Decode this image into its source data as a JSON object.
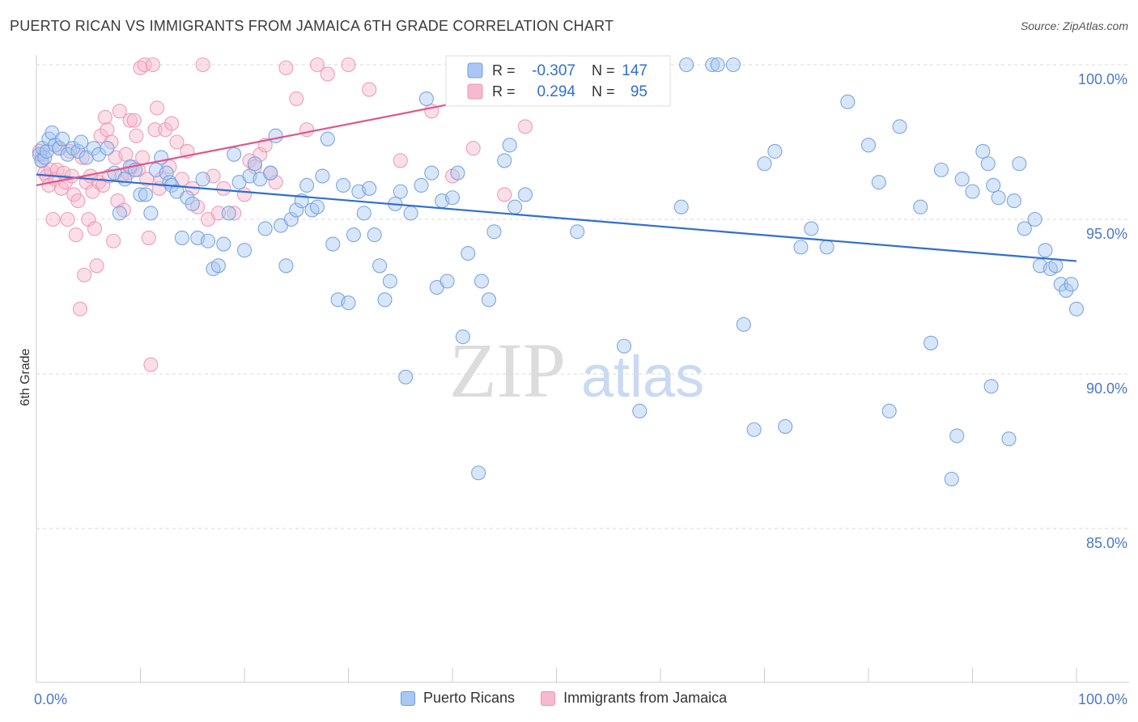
{
  "title": "PUERTO RICAN VS IMMIGRANTS FROM JAMAICA 6TH GRADE CORRELATION CHART",
  "source": "Source: ZipAtlas.com",
  "watermark": {
    "zip": "ZIP",
    "atlas": "atlas"
  },
  "legend_top": [
    {
      "r_label": "R =",
      "r_value": "-0.307",
      "n_label": "N =",
      "n_value": "147"
    },
    {
      "r_label": "R =",
      "r_value": "0.294",
      "n_label": "N =",
      "n_value": "95"
    }
  ],
  "legend_bottom": [
    {
      "label": "Puerto Ricans"
    },
    {
      "label": "Immigrants from Jamaica"
    }
  ],
  "colors": {
    "blue_fill": "#a9c7f2",
    "blue_stroke": "#6f9fe0",
    "blue_line": "#2f6fd1",
    "pink_fill": "#f7b9cd",
    "pink_stroke": "#ee93b2",
    "pink_line": "#e0568a",
    "grid": "#d8d8d8",
    "axis_text": "#4a78c8"
  },
  "chart_data": {
    "type": "scatter",
    "title": "PUERTO RICAN VS IMMIGRANTS FROM JAMAICA 6TH GRADE CORRELATION CHART",
    "xlabel": "",
    "ylabel": "6th Grade",
    "xlim": [
      0,
      100
    ],
    "ylim": [
      80.5,
      100.8
    ],
    "x_tick_labels": [
      "0.0%",
      "100.0%"
    ],
    "y_ticks": [
      100,
      95,
      90,
      85
    ],
    "y_tick_labels": [
      "100.0%",
      "95.0%",
      "90.0%",
      "85.0%"
    ],
    "grid": true,
    "series": [
      {
        "name": "Puerto Ricans",
        "r": -0.307,
        "n": 147,
        "trend": {
          "x": [
            0,
            100
          ],
          "y": [
            96.45,
            93.65
          ]
        },
        "points": [
          [
            0.3,
            97.1
          ],
          [
            0.5,
            96.9
          ],
          [
            0.6,
            97.3
          ],
          [
            0.8,
            97.0
          ],
          [
            1.0,
            97.2
          ],
          [
            1.2,
            97.6
          ],
          [
            1.5,
            97.8
          ],
          [
            1.8,
            97.4
          ],
          [
            2.2,
            97.3
          ],
          [
            2.5,
            97.6
          ],
          [
            3.0,
            97.1
          ],
          [
            3.5,
            97.3
          ],
          [
            4.0,
            97.2
          ],
          [
            4.3,
            97.5
          ],
          [
            4.8,
            97.0
          ],
          [
            5.5,
            97.3
          ],
          [
            6.0,
            97.1
          ],
          [
            6.8,
            97.3
          ],
          [
            7.5,
            96.5
          ],
          [
            8.0,
            95.2
          ],
          [
            8.5,
            96.3
          ],
          [
            9.0,
            96.7
          ],
          [
            9.5,
            96.6
          ],
          [
            10.0,
            95.8
          ],
          [
            10.5,
            95.8
          ],
          [
            11.0,
            95.2
          ],
          [
            11.5,
            96.6
          ],
          [
            12.0,
            97.0
          ],
          [
            12.5,
            96.5
          ],
          [
            12.8,
            96.2
          ],
          [
            13.0,
            96.1
          ],
          [
            13.5,
            95.9
          ],
          [
            14.0,
            94.4
          ],
          [
            14.5,
            95.7
          ],
          [
            15.0,
            95.5
          ],
          [
            15.5,
            94.4
          ],
          [
            16.0,
            96.3
          ],
          [
            16.5,
            94.3
          ],
          [
            17.0,
            93.4
          ],
          [
            17.5,
            93.5
          ],
          [
            18.0,
            94.2
          ],
          [
            18.5,
            95.2
          ],
          [
            19.0,
            97.1
          ],
          [
            19.5,
            96.2
          ],
          [
            20.0,
            94.0
          ],
          [
            20.5,
            96.4
          ],
          [
            21.0,
            96.8
          ],
          [
            21.5,
            96.3
          ],
          [
            22.0,
            94.7
          ],
          [
            22.5,
            96.5
          ],
          [
            23.0,
            97.7
          ],
          [
            23.5,
            94.8
          ],
          [
            24.0,
            93.5
          ],
          [
            24.5,
            95.0
          ],
          [
            25.0,
            95.3
          ],
          [
            25.5,
            95.6
          ],
          [
            26.0,
            96.1
          ],
          [
            26.5,
            95.3
          ],
          [
            27.0,
            95.4
          ],
          [
            27.5,
            96.4
          ],
          [
            28.0,
            97.6
          ],
          [
            28.5,
            94.2
          ],
          [
            29.0,
            92.4
          ],
          [
            29.5,
            96.1
          ],
          [
            30.0,
            92.3
          ],
          [
            30.5,
            94.5
          ],
          [
            31.0,
            95.9
          ],
          [
            31.5,
            95.2
          ],
          [
            32.0,
            96.0
          ],
          [
            32.5,
            94.5
          ],
          [
            33.0,
            93.5
          ],
          [
            33.5,
            92.4
          ],
          [
            34.0,
            93.0
          ],
          [
            34.5,
            95.5
          ],
          [
            35.0,
            95.9
          ],
          [
            35.5,
            89.9
          ],
          [
            36.0,
            95.2
          ],
          [
            37.0,
            96.1
          ],
          [
            37.5,
            98.9
          ],
          [
            38.0,
            96.5
          ],
          [
            38.5,
            92.8
          ],
          [
            39.0,
            95.6
          ],
          [
            39.5,
            93.0
          ],
          [
            40.0,
            95.7
          ],
          [
            40.5,
            96.5
          ],
          [
            41.0,
            91.2
          ],
          [
            41.5,
            93.9
          ],
          [
            42.5,
            86.8
          ],
          [
            42.8,
            93.0
          ],
          [
            43.5,
            92.4
          ],
          [
            44.0,
            94.6
          ],
          [
            45.0,
            96.9
          ],
          [
            45.5,
            97.4
          ],
          [
            46.0,
            95.4
          ],
          [
            47.0,
            95.8
          ],
          [
            48.0,
            100.0
          ],
          [
            49.0,
            99.0
          ],
          [
            51.0,
            100.0
          ],
          [
            52.0,
            94.6
          ],
          [
            55.0,
            100.0
          ],
          [
            56.5,
            90.9
          ],
          [
            57.0,
            100.0
          ],
          [
            58.0,
            88.8
          ],
          [
            60.0,
            100.0
          ],
          [
            62.0,
            95.4
          ],
          [
            62.5,
            100.0
          ],
          [
            65.0,
            100.0
          ],
          [
            65.5,
            100.0
          ],
          [
            67.0,
            100.0
          ],
          [
            68.0,
            91.6
          ],
          [
            69.0,
            88.2
          ],
          [
            70.0,
            96.8
          ],
          [
            71.0,
            97.2
          ],
          [
            72.0,
            88.3
          ],
          [
            73.5,
            94.1
          ],
          [
            74.5,
            94.7
          ],
          [
            76.0,
            94.1
          ],
          [
            78.0,
            98.8
          ],
          [
            80.0,
            97.4
          ],
          [
            81.0,
            96.2
          ],
          [
            82.0,
            88.8
          ],
          [
            83.0,
            98.0
          ],
          [
            85.0,
            95.4
          ],
          [
            86.0,
            91.0
          ],
          [
            87.0,
            96.6
          ],
          [
            88.0,
            86.6
          ],
          [
            88.5,
            88.0
          ],
          [
            89.0,
            96.3
          ],
          [
            90.0,
            95.9
          ],
          [
            91.0,
            97.2
          ],
          [
            91.5,
            96.8
          ],
          [
            91.8,
            89.6
          ],
          [
            92.0,
            96.1
          ],
          [
            92.5,
            95.7
          ],
          [
            93.5,
            87.9
          ],
          [
            94.0,
            95.6
          ],
          [
            94.5,
            96.8
          ],
          [
            95.0,
            94.7
          ],
          [
            96.0,
            95.0
          ],
          [
            96.5,
            93.5
          ],
          [
            97.0,
            94.0
          ],
          [
            97.5,
            93.4
          ],
          [
            98.0,
            93.5
          ],
          [
            98.5,
            92.9
          ],
          [
            99.0,
            92.7
          ],
          [
            99.5,
            92.9
          ],
          [
            100.0,
            92.1
          ]
        ]
      },
      {
        "name": "Immigrants from Jamaica",
        "r": 0.294,
        "n": 95,
        "trend": {
          "x": [
            0,
            50
          ],
          "y": [
            96.1,
            99.4
          ]
        },
        "points": [
          [
            0.3,
            97.2
          ],
          [
            0.5,
            96.9
          ],
          [
            0.6,
            97.1
          ],
          [
            0.8,
            96.5
          ],
          [
            1.0,
            96.4
          ],
          [
            1.2,
            96.1
          ],
          [
            1.4,
            96.6
          ],
          [
            1.6,
            95.0
          ],
          [
            1.8,
            96.3
          ],
          [
            2.0,
            96.6
          ],
          [
            2.2,
            97.3
          ],
          [
            2.4,
            96.0
          ],
          [
            2.6,
            96.5
          ],
          [
            2.8,
            96.2
          ],
          [
            3.0,
            95.0
          ],
          [
            3.2,
            97.2
          ],
          [
            3.4,
            96.4
          ],
          [
            3.6,
            95.8
          ],
          [
            3.8,
            94.5
          ],
          [
            4.0,
            95.6
          ],
          [
            4.2,
            92.1
          ],
          [
            4.4,
            97.0
          ],
          [
            4.6,
            93.2
          ],
          [
            4.8,
            96.2
          ],
          [
            5.0,
            95.0
          ],
          [
            5.2,
            96.4
          ],
          [
            5.4,
            95.9
          ],
          [
            5.6,
            94.7
          ],
          [
            5.8,
            93.5
          ],
          [
            6.0,
            96.2
          ],
          [
            6.2,
            97.7
          ],
          [
            6.4,
            96.1
          ],
          [
            6.6,
            98.3
          ],
          [
            6.8,
            97.9
          ],
          [
            7.0,
            96.4
          ],
          [
            7.2,
            97.5
          ],
          [
            7.4,
            94.3
          ],
          [
            7.6,
            97.0
          ],
          [
            7.8,
            95.6
          ],
          [
            8.0,
            98.5
          ],
          [
            8.2,
            96.4
          ],
          [
            8.4,
            95.3
          ],
          [
            8.6,
            97.1
          ],
          [
            8.8,
            96.5
          ],
          [
            9.0,
            98.2
          ],
          [
            9.2,
            96.7
          ],
          [
            9.4,
            98.2
          ],
          [
            9.6,
            97.7
          ],
          [
            9.8,
            96.6
          ],
          [
            10.0,
            99.9
          ],
          [
            10.2,
            97.0
          ],
          [
            10.4,
            100.0
          ],
          [
            10.6,
            96.3
          ],
          [
            10.8,
            94.4
          ],
          [
            11.0,
            90.3
          ],
          [
            11.2,
            100.0
          ],
          [
            11.4,
            97.9
          ],
          [
            11.6,
            98.6
          ],
          [
            11.8,
            96.0
          ],
          [
            12.0,
            96.3
          ],
          [
            12.4,
            97.9
          ],
          [
            12.8,
            96.7
          ],
          [
            13.0,
            98.1
          ],
          [
            13.5,
            97.5
          ],
          [
            14.0,
            96.3
          ],
          [
            14.5,
            97.2
          ],
          [
            15.0,
            96.0
          ],
          [
            15.5,
            95.4
          ],
          [
            16.0,
            100.0
          ],
          [
            16.5,
            95.0
          ],
          [
            17.0,
            96.4
          ],
          [
            17.5,
            95.2
          ],
          [
            18.0,
            96.0
          ],
          [
            19.0,
            95.2
          ],
          [
            20.0,
            95.8
          ],
          [
            20.5,
            96.9
          ],
          [
            21.0,
            96.7
          ],
          [
            21.5,
            97.1
          ],
          [
            22.0,
            97.4
          ],
          [
            22.5,
            96.5
          ],
          [
            23.0,
            96.2
          ],
          [
            24.0,
            99.9
          ],
          [
            25.0,
            98.9
          ],
          [
            26.0,
            97.9
          ],
          [
            27.0,
            100.0
          ],
          [
            28.0,
            99.7
          ],
          [
            30.0,
            100.0
          ],
          [
            32.0,
            99.2
          ],
          [
            35.0,
            96.9
          ],
          [
            38.0,
            98.5
          ],
          [
            40.0,
            96.4
          ],
          [
            42.0,
            97.3
          ],
          [
            45.0,
            95.8
          ],
          [
            47.0,
            98.0
          ],
          [
            50.0,
            99.4
          ]
        ]
      }
    ]
  }
}
